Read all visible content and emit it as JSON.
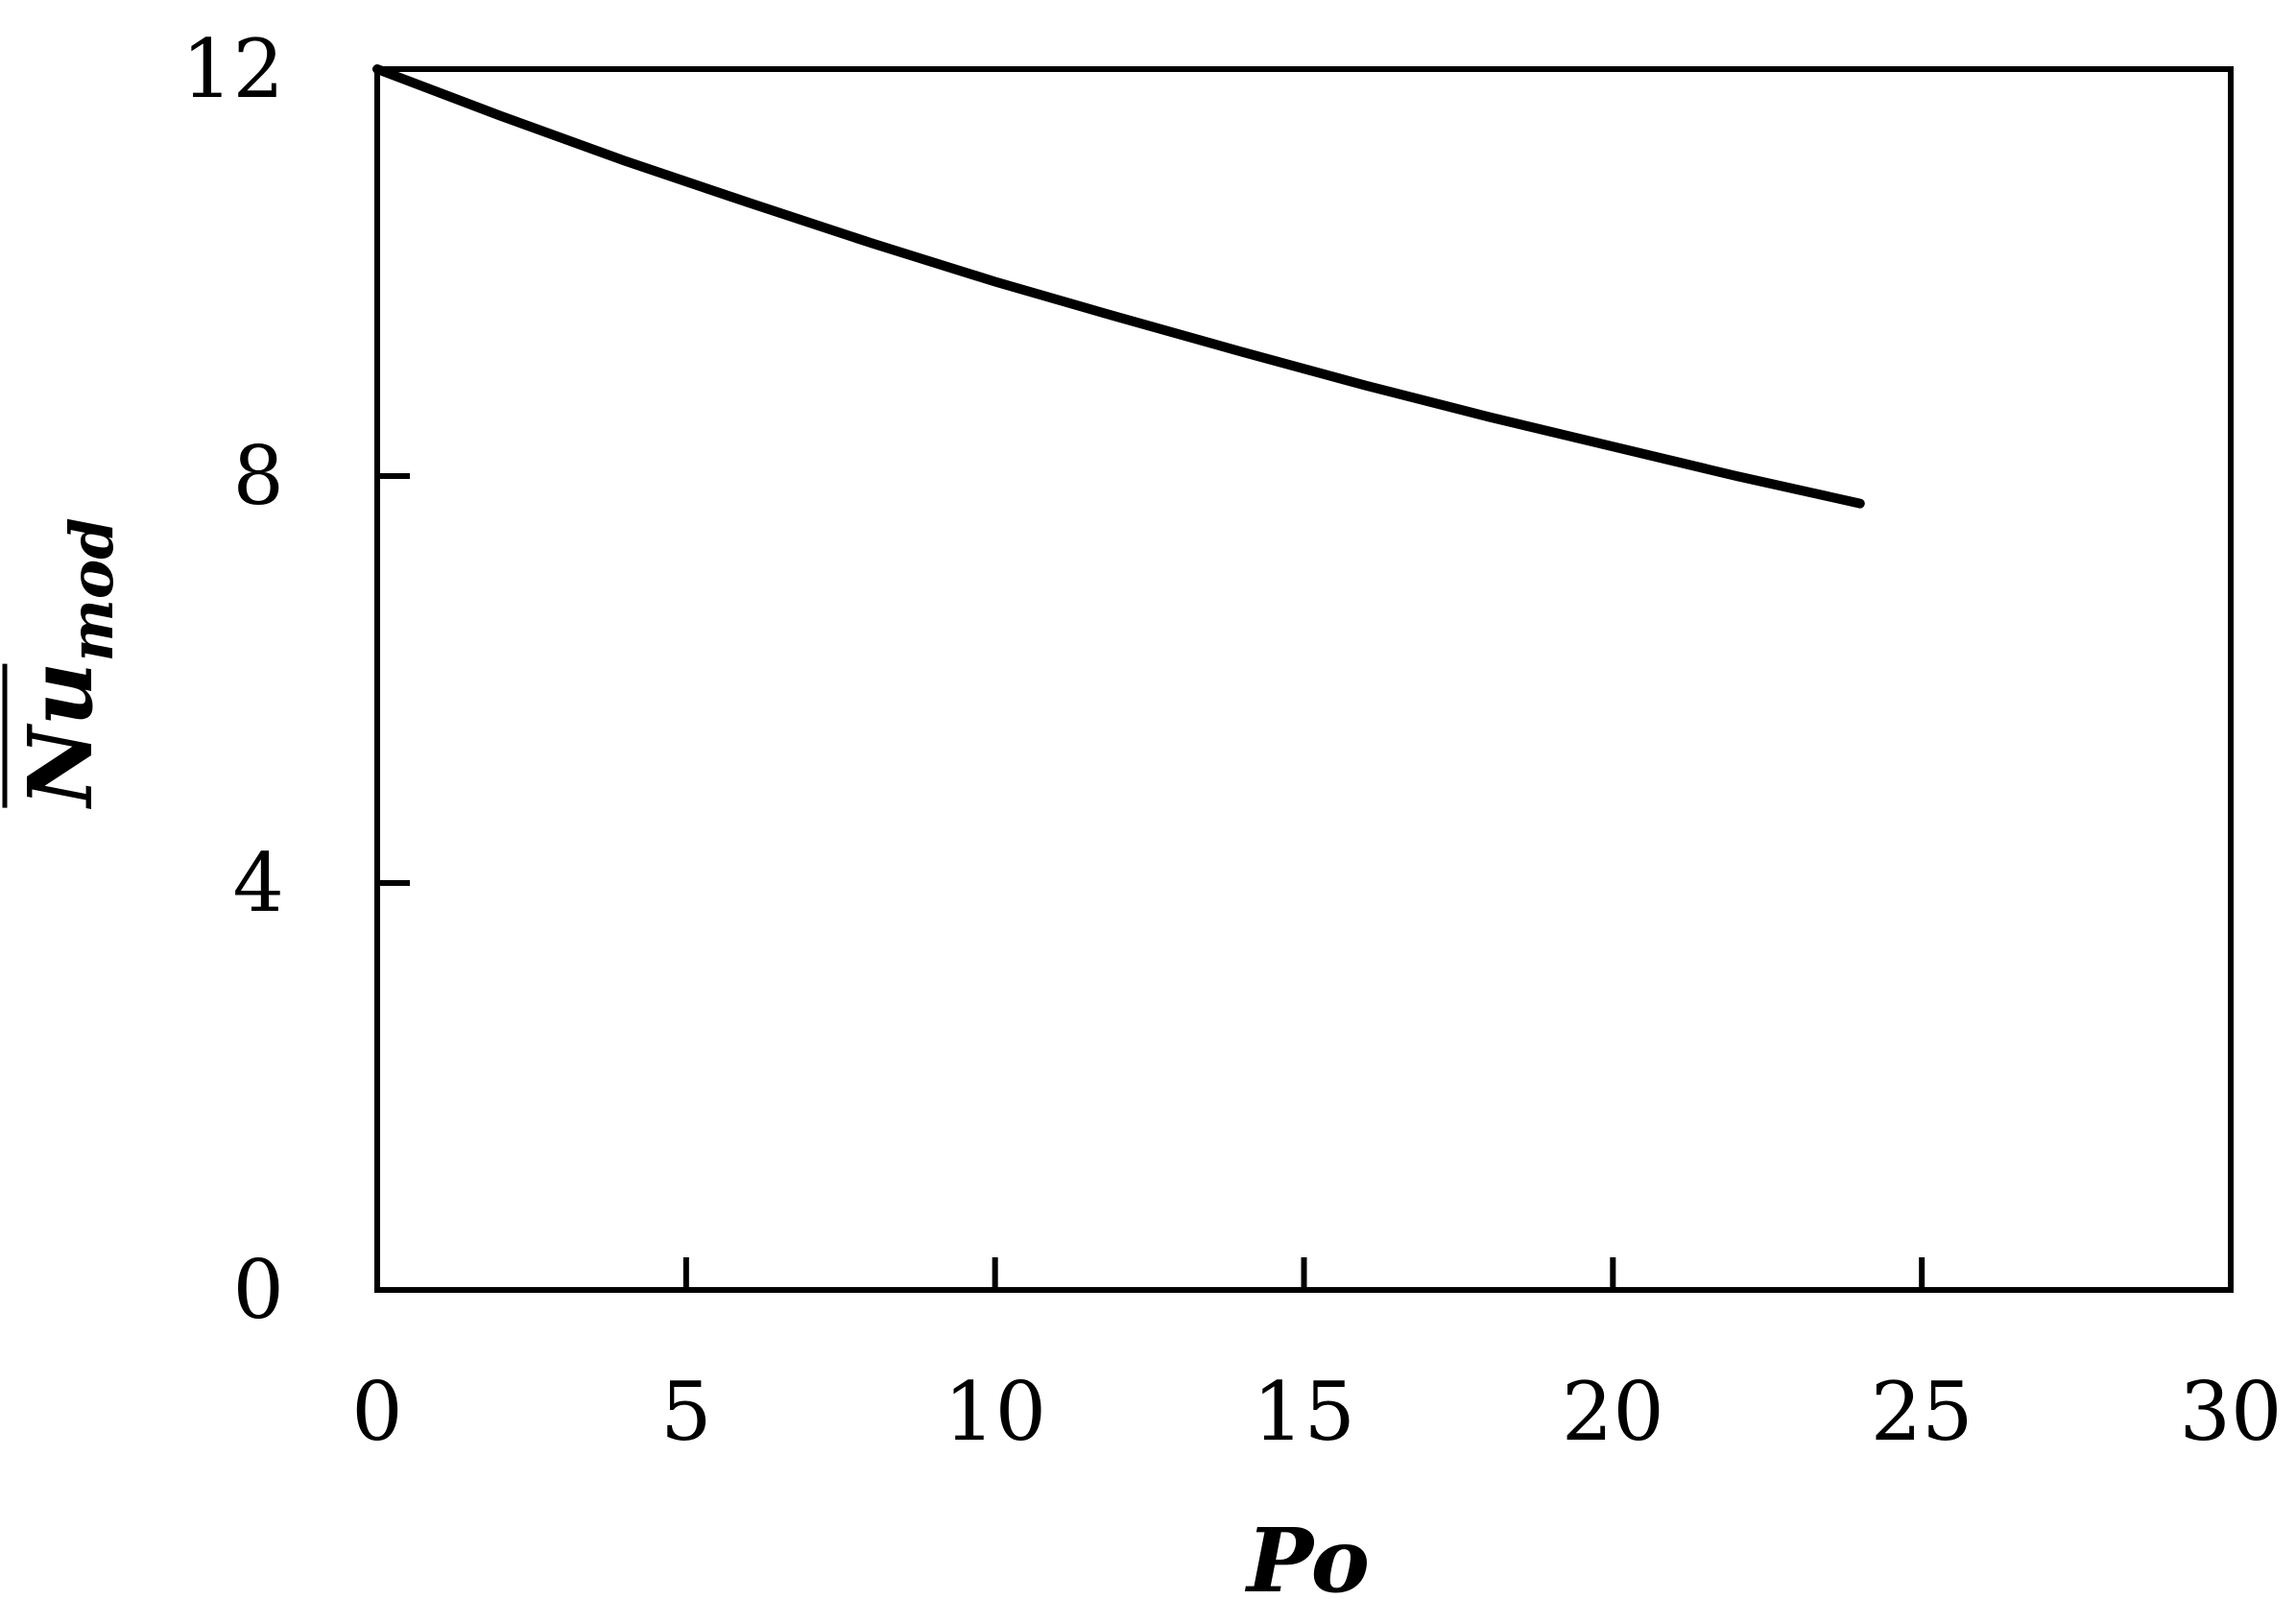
{
  "chart_data": {
    "type": "line",
    "title": "",
    "xlabel": "Po",
    "ylabel": {
      "base": "Nu",
      "subscript": "mod",
      "overline": true
    },
    "xlim": [
      0,
      30
    ],
    "ylim": [
      0,
      12
    ],
    "x_ticks": [
      0,
      5,
      10,
      15,
      20,
      25,
      30
    ],
    "y_ticks": [
      0,
      4,
      8,
      12
    ],
    "x_tick_labels": [
      "0",
      "5",
      "10",
      "15",
      "20",
      "25",
      "30"
    ],
    "y_tick_labels": [
      "0",
      "4",
      "8",
      "12"
    ],
    "grid": false,
    "legend": "none",
    "series": [
      {
        "color": "#000000",
        "x": [
          0,
          2,
          4,
          6,
          8,
          10,
          12,
          14,
          16,
          18,
          20,
          22,
          24
        ],
        "y": [
          12.0,
          11.54,
          11.1,
          10.69,
          10.29,
          9.91,
          9.56,
          9.22,
          8.89,
          8.58,
          8.29,
          8.0,
          7.73
        ]
      }
    ]
  }
}
